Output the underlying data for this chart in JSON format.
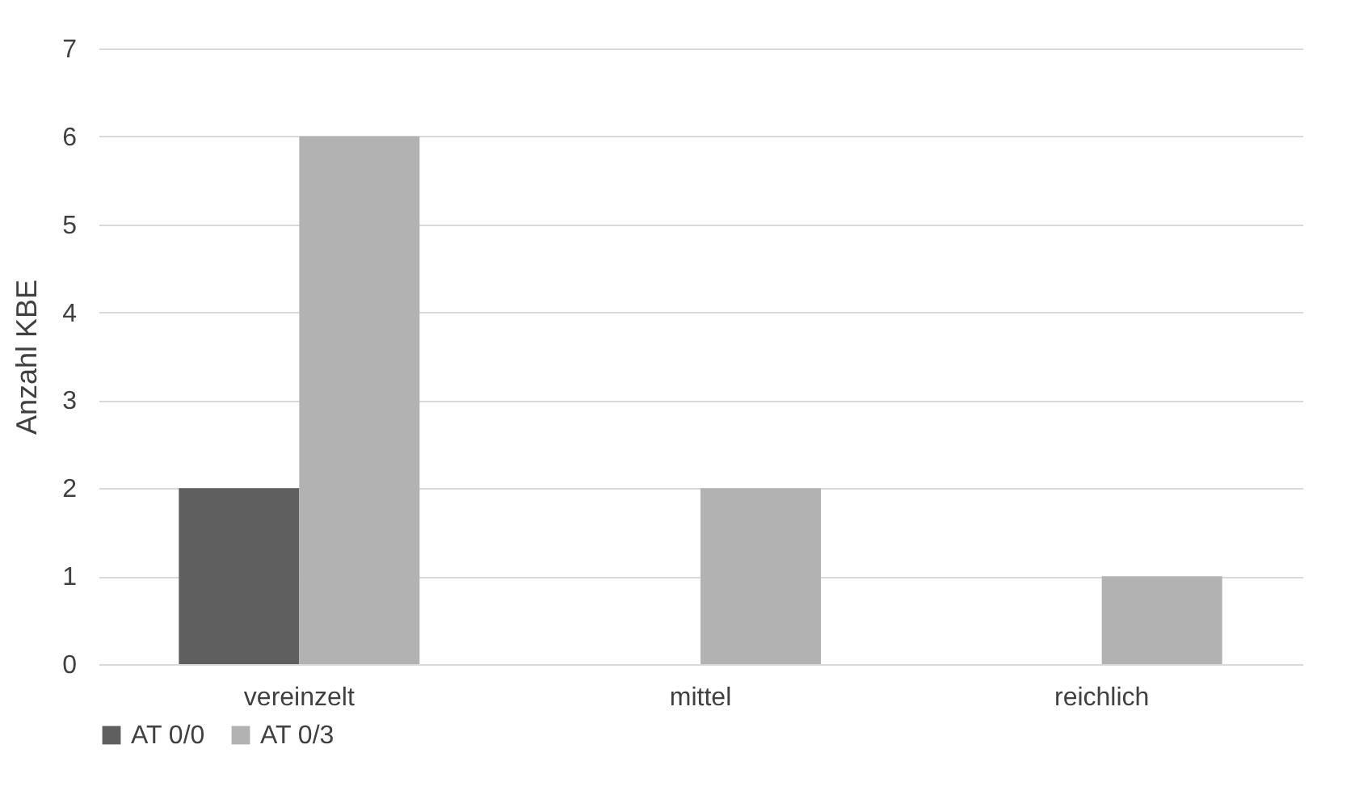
{
  "chart_data": {
    "type": "bar",
    "ylabel": "Anzahl KBE",
    "categories": [
      "vereinzelt",
      "mittel",
      "reichlich"
    ],
    "series": [
      {
        "name": "AT 0/0",
        "color": "#5f5f5f",
        "values": [
          2,
          0,
          0
        ]
      },
      {
        "name": "AT 0/3",
        "color": "#b2b2b2",
        "values": [
          6,
          2,
          1
        ]
      }
    ],
    "ylim": [
      0,
      7
    ],
    "yticks": [
      0,
      1,
      2,
      3,
      4,
      5,
      6,
      7
    ],
    "grid": "y",
    "legend": "bottom"
  }
}
